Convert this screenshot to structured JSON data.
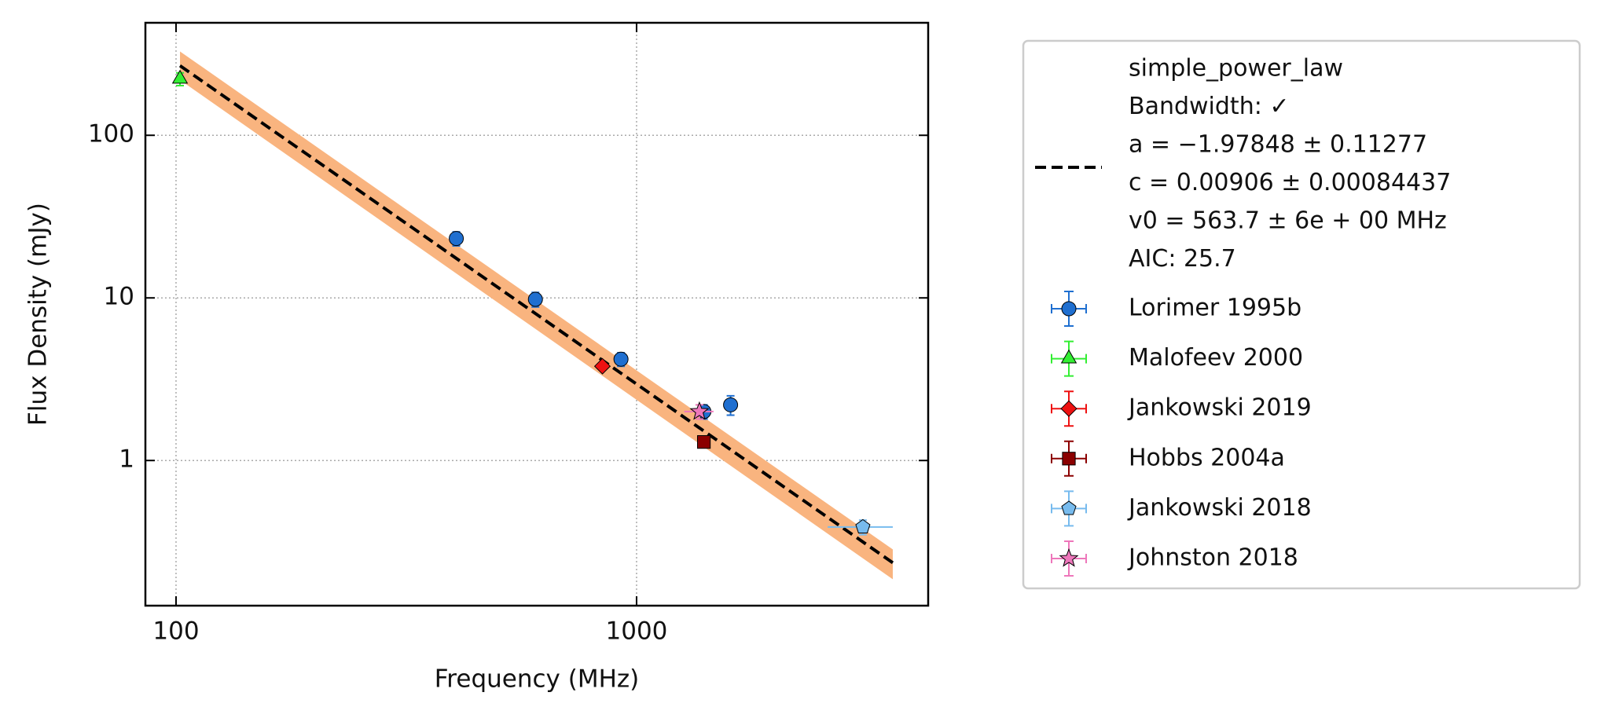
{
  "chart_data": {
    "type": "scatter",
    "xlabel": "Frequency (MHz)",
    "ylabel": "Flux Density (mJy)",
    "log_x": true,
    "log_y": true,
    "grid": true,
    "legend": "right",
    "xlim": [
      85.8,
      4297
    ],
    "ylim": [
      0.128,
      492
    ],
    "xticks": [
      100,
      1000
    ],
    "yticks": [
      1,
      10,
      100
    ],
    "fit": {
      "lines": [
        "simple_power_law",
        "Bandwidth: ✓",
        "a = −1.97848 ± 0.11277",
        "c = 0.00906 ± 0.00084437",
        "v0 = 563.7 ± 6e + 00 MHz",
        "AIC: 25.7"
      ],
      "color": "#000000",
      "x": [
        102,
        3600
      ],
      "values": [
        268,
        0.235
      ],
      "band_color": "#f9b47f",
      "band_x": [
        102,
        3600
      ],
      "lower": [
        219,
        0.186
      ],
      "upper": [
        328,
        0.284
      ]
    },
    "series": [
      {
        "name": "Lorimer 1995b",
        "color": "#1f6fd0",
        "marker": "circle",
        "x": [
          406,
          603,
          925,
          1400,
          1600
        ],
        "values": [
          23.2,
          9.8,
          4.2,
          2.0,
          2.2
        ],
        "yerr": [
          2.3,
          1.0,
          0.4,
          0.2,
          0.3
        ]
      },
      {
        "name": "Malofeev 2000",
        "color": "#33ee33",
        "marker": "triangle",
        "x": [
          102
        ],
        "values": [
          222
        ],
        "yerr": [
          20
        ]
      },
      {
        "name": "Jankowski 2019",
        "color": "#ee1111",
        "marker": "diamond",
        "x": [
          843
        ],
        "values": [
          3.8
        ],
        "yerr": [
          0.2
        ]
      },
      {
        "name": "Hobbs 2004a",
        "color": "#8b0000",
        "marker": "square",
        "x": [
          1400
        ],
        "values": [
          1.3
        ],
        "yerr": [
          0.1
        ]
      },
      {
        "name": "Jankowski 2018",
        "color": "#77bbee",
        "marker": "pentagon",
        "x": [
          3100
        ],
        "values": [
          0.39
        ],
        "yerr": [
          0.04
        ],
        "xerr": [
          500
        ]
      },
      {
        "name": "Johnston 2018",
        "color": "#ee77bb",
        "marker": "star",
        "x": [
          1369
        ],
        "values": [
          2.0
        ],
        "yerr": [
          0.2
        ],
        "xerr": [
          100
        ]
      }
    ]
  }
}
